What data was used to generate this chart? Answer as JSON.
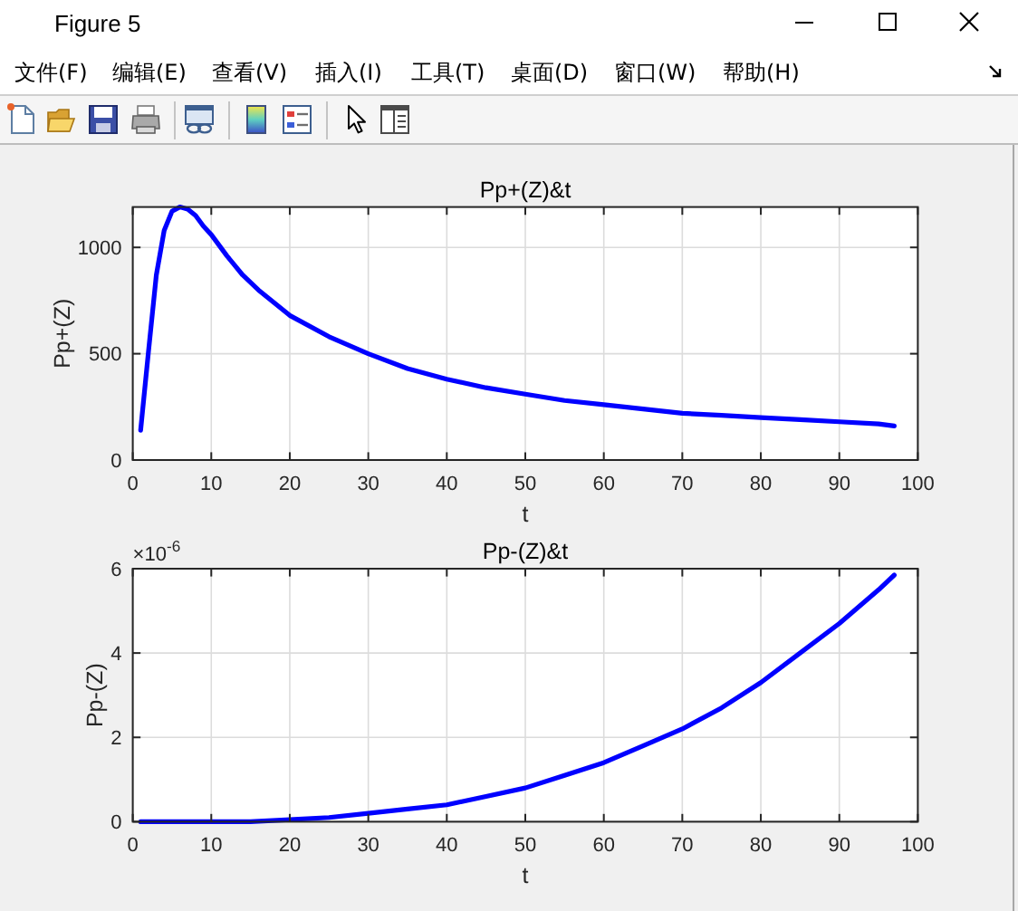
{
  "chart_data": [
    {
      "type": "line",
      "title": "Pp+(Z)&t",
      "xlabel": "t",
      "ylabel": "Pp+(Z)",
      "annotations": [
        "Figure 5",
        "文件(F)",
        "编辑(E)",
        "查看(V)",
        "插入(I)",
        "工具(T)",
        "桌面(D)",
        "窗口(W)",
        "帮助(H)"
      ],
      "x": [
        1,
        2,
        3,
        4,
        5,
        6,
        7,
        8,
        9,
        10,
        12,
        14,
        16,
        18,
        20,
        25,
        30,
        35,
        40,
        45,
        50,
        55,
        60,
        65,
        70,
        75,
        80,
        85,
        90,
        95,
        97
      ],
      "series": [
        {
          "color": "#0000ff",
          "values": [
            140,
            510,
            870,
            1080,
            1170,
            1190,
            1180,
            1150,
            1100,
            1060,
            960,
            870,
            800,
            740,
            680,
            580,
            500,
            430,
            380,
            340,
            310,
            280,
            260,
            240,
            220,
            210,
            200,
            190,
            180,
            170,
            160
          ]
        }
      ],
      "xlim": [
        0,
        100
      ],
      "xticks": [
        0,
        10,
        20,
        30,
        40,
        50,
        60,
        70,
        80,
        90,
        100
      ],
      "ylim": [
        0,
        1190
      ],
      "yticks": [
        0,
        500,
        1000
      ],
      "grid": true
    },
    {
      "type": "line",
      "title": "Pp-(Z)&t",
      "xlabel": "t",
      "ylabel": "Pp-(Z)",
      "annotations": [
        "×10$^{-6}$"
      ],
      "x": [
        1,
        5,
        10,
        15,
        20,
        25,
        30,
        35,
        40,
        45,
        50,
        55,
        60,
        65,
        70,
        75,
        80,
        85,
        90,
        95,
        97
      ],
      "series": [
        {
          "color": "#0000ff",
          "values": [
            0,
            0,
            0,
            0,
            0.05,
            0.1,
            0.2,
            0.3,
            0.4,
            0.6,
            0.8,
            1.1,
            1.4,
            1.8,
            2.2,
            2.7,
            3.3,
            4,
            4.7,
            5.5,
            5.85
          ]
        }
      ],
      "xlim": [
        0,
        100
      ],
      "xticks": [
        0,
        10,
        20,
        30,
        40,
        50,
        60,
        70,
        80,
        90,
        100
      ],
      "ylim": [
        0,
        6
      ],
      "yticks": [
        0,
        2,
        4,
        6
      ],
      "grid": true
    }
  ]
}
